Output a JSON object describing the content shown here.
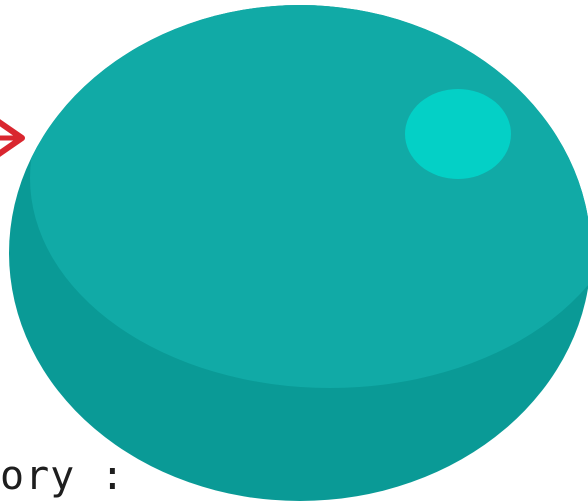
{
  "caption": {
    "text": "ory :"
  },
  "colors": {
    "ball_base": "#0a9a96",
    "ball_top": "#11aaa6",
    "highlight": "#04d0c6",
    "arrow": "#d9262f",
    "caption_text": "#1e1e1e",
    "background": "#ffffff"
  },
  "icons": {
    "arrow": "red-arrow-icon",
    "ball": "teal-sphere",
    "highlight": "sphere-highlight"
  }
}
